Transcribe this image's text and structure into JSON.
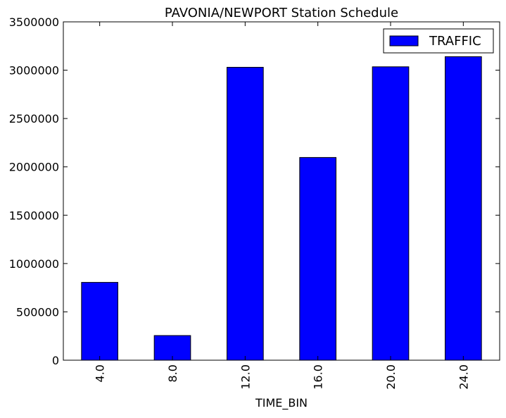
{
  "chart_data": {
    "type": "bar",
    "title": "PAVONIA/NEWPORT Station Schedule",
    "xlabel": "TIME_BIN",
    "ylabel": "",
    "categories": [
      "4.0",
      "8.0",
      "12.0",
      "16.0",
      "20.0",
      "24.0"
    ],
    "series": [
      {
        "name": "TRAFFIC",
        "values": [
          805000,
          255000,
          3030000,
          2097000,
          3035000,
          3140000
        ],
        "color": "#0000ff"
      }
    ],
    "ylim": [
      0,
      3500000
    ],
    "yticks": [
      "0",
      "500000",
      "1000000",
      "1500000",
      "2000000",
      "2500000",
      "3000000",
      "3500000"
    ],
    "grid": false,
    "legend_position": "top-right"
  }
}
